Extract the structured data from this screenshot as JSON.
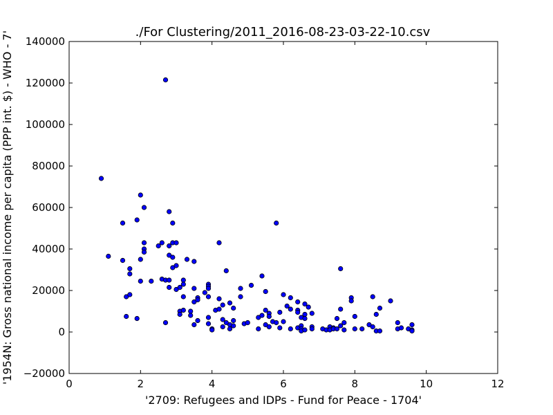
{
  "chart_data": {
    "type": "scatter",
    "title": "./For Clustering/2011_2016-08-23-03-22-10.csv",
    "xlabel": "'2709: Refugees and IDPs - Fund for Peace - 1704'",
    "ylabel": "'1954N: Gross national income per capita (PPP int. $) - WHO - 7'",
    "xlim": [
      0,
      12
    ],
    "ylim": [
      -20000,
      140000
    ],
    "xticks": [
      "0",
      "2",
      "4",
      "6",
      "8",
      "10",
      "12"
    ],
    "yticks": [
      "−20000",
      "0",
      "20000",
      "40000",
      "60000",
      "80000",
      "100000",
      "120000",
      "140000"
    ],
    "xtick_values": [
      0,
      2,
      4,
      6,
      8,
      10,
      12
    ],
    "ytick_values": [
      -20000,
      0,
      20000,
      40000,
      60000,
      80000,
      100000,
      120000,
      140000
    ],
    "grid": false,
    "marker_color": "#0000ff",
    "points": [
      [
        0.9,
        74000
      ],
      [
        1.1,
        36500
      ],
      [
        1.5,
        52500
      ],
      [
        1.5,
        34500
      ],
      [
        1.6,
        17000
      ],
      [
        1.6,
        7500
      ],
      [
        1.7,
        30500
      ],
      [
        1.7,
        28000
      ],
      [
        1.7,
        18000
      ],
      [
        1.9,
        54000
      ],
      [
        1.9,
        6500
      ],
      [
        2.0,
        66000
      ],
      [
        2.0,
        35000
      ],
      [
        2.0,
        24500
      ],
      [
        2.1,
        60000
      ],
      [
        2.1,
        43000
      ],
      [
        2.1,
        40000
      ],
      [
        2.1,
        38500
      ],
      [
        2.3,
        24500
      ],
      [
        2.5,
        41500
      ],
      [
        2.6,
        43000
      ],
      [
        2.6,
        25500
      ],
      [
        2.7,
        121500
      ],
      [
        2.7,
        25000
      ],
      [
        2.7,
        4500
      ],
      [
        2.8,
        58000
      ],
      [
        2.8,
        41500
      ],
      [
        2.8,
        37000
      ],
      [
        2.8,
        25000
      ],
      [
        2.8,
        21500
      ],
      [
        2.9,
        52500
      ],
      [
        2.9,
        43000
      ],
      [
        2.9,
        36000
      ],
      [
        2.9,
        31000
      ],
      [
        3.0,
        43000
      ],
      [
        3.0,
        32000
      ],
      [
        3.0,
        20500
      ],
      [
        3.1,
        21500
      ],
      [
        3.1,
        10000
      ],
      [
        3.1,
        8500
      ],
      [
        3.2,
        25000
      ],
      [
        3.2,
        23000
      ],
      [
        3.2,
        17000
      ],
      [
        3.2,
        10500
      ],
      [
        3.3,
        35000
      ],
      [
        3.4,
        10000
      ],
      [
        3.4,
        8000
      ],
      [
        3.5,
        34000
      ],
      [
        3.5,
        21000
      ],
      [
        3.5,
        14500
      ],
      [
        3.5,
        3500
      ],
      [
        3.6,
        16500
      ],
      [
        3.6,
        15500
      ],
      [
        3.6,
        5500
      ],
      [
        3.8,
        19000
      ],
      [
        3.9,
        23000
      ],
      [
        3.9,
        22000
      ],
      [
        3.9,
        21000
      ],
      [
        3.9,
        17000
      ],
      [
        3.9,
        7000
      ],
      [
        3.9,
        4000
      ],
      [
        4.0,
        1500
      ],
      [
        4.0,
        1000
      ],
      [
        4.1,
        10500
      ],
      [
        4.2,
        43000
      ],
      [
        4.2,
        16000
      ],
      [
        4.2,
        11000
      ],
      [
        4.3,
        13000
      ],
      [
        4.3,
        6000
      ],
      [
        4.3,
        2500
      ],
      [
        4.4,
        29500
      ],
      [
        4.4,
        4500
      ],
      [
        4.5,
        14000
      ],
      [
        4.5,
        3500
      ],
      [
        4.5,
        1500
      ],
      [
        4.6,
        11500
      ],
      [
        4.6,
        5500
      ],
      [
        4.6,
        3000
      ],
      [
        4.8,
        21000
      ],
      [
        4.8,
        17000
      ],
      [
        4.9,
        4000
      ],
      [
        5.0,
        4500
      ],
      [
        5.1,
        22500
      ],
      [
        5.3,
        7000
      ],
      [
        5.3,
        1500
      ],
      [
        5.4,
        27000
      ],
      [
        5.4,
        8000
      ],
      [
        5.5,
        19500
      ],
      [
        5.5,
        10500
      ],
      [
        5.5,
        3500
      ],
      [
        5.6,
        9000
      ],
      [
        5.6,
        7500
      ],
      [
        5.6,
        2500
      ],
      [
        5.7,
        5000
      ],
      [
        5.8,
        52500
      ],
      [
        5.8,
        4500
      ],
      [
        5.9,
        9500
      ],
      [
        5.9,
        2000
      ],
      [
        6.0,
        18000
      ],
      [
        6.0,
        5000
      ],
      [
        6.1,
        12500
      ],
      [
        6.2,
        16500
      ],
      [
        6.2,
        11000
      ],
      [
        6.2,
        1500
      ],
      [
        6.4,
        14500
      ],
      [
        6.4,
        10500
      ],
      [
        6.4,
        9500
      ],
      [
        6.4,
        2000
      ],
      [
        6.5,
        7000
      ],
      [
        6.5,
        3000
      ],
      [
        6.5,
        1500
      ],
      [
        6.5,
        500
      ],
      [
        6.6,
        13500
      ],
      [
        6.6,
        8500
      ],
      [
        6.6,
        6500
      ],
      [
        6.6,
        1000
      ],
      [
        6.7,
        12000
      ],
      [
        6.8,
        9000
      ],
      [
        6.8,
        2500
      ],
      [
        6.8,
        1500
      ],
      [
        7.1,
        1500
      ],
      [
        7.2,
        1000
      ],
      [
        7.3,
        2500
      ],
      [
        7.3,
        1000
      ],
      [
        7.4,
        2000
      ],
      [
        7.4,
        1500
      ],
      [
        7.5,
        6500
      ],
      [
        7.5,
        1500
      ],
      [
        7.6,
        30500
      ],
      [
        7.6,
        11000
      ],
      [
        7.6,
        3000
      ],
      [
        7.7,
        4500
      ],
      [
        7.7,
        1000
      ],
      [
        7.9,
        16500
      ],
      [
        7.9,
        15000
      ],
      [
        8.0,
        7500
      ],
      [
        8.0,
        1500
      ],
      [
        8.2,
        1500
      ],
      [
        8.4,
        3500
      ],
      [
        8.5,
        17000
      ],
      [
        8.5,
        2500
      ],
      [
        8.6,
        8500
      ],
      [
        8.6,
        500
      ],
      [
        8.7,
        11500
      ],
      [
        8.7,
        500
      ],
      [
        9.0,
        15000
      ],
      [
        9.2,
        4500
      ],
      [
        9.2,
        1500
      ],
      [
        9.3,
        2000
      ],
      [
        9.5,
        1500
      ],
      [
        9.6,
        3500
      ],
      [
        9.6,
        1000
      ],
      [
        9.6,
        500
      ]
    ]
  }
}
